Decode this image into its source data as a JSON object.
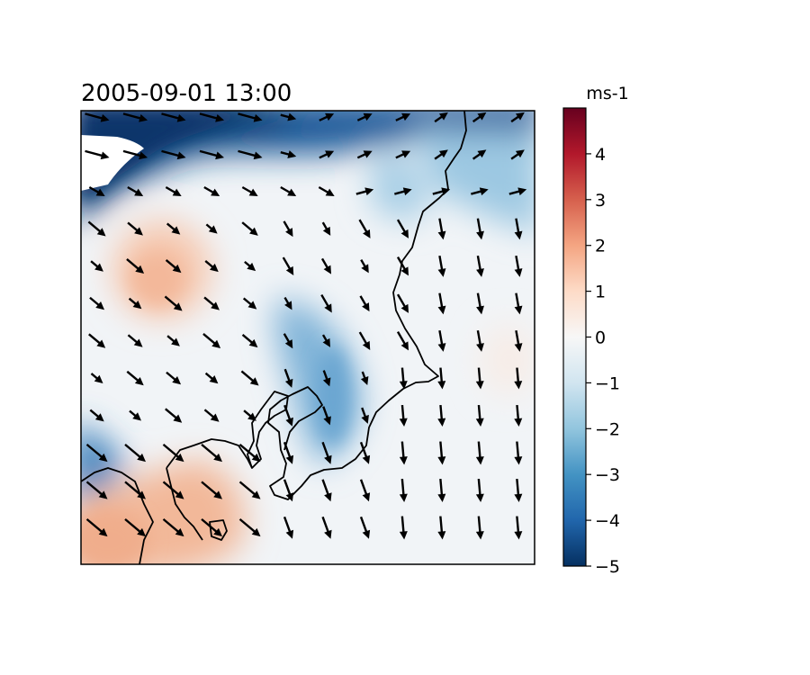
{
  "title": "2005-09-01 13:00",
  "colorbar": {
    "unit": "ms-1",
    "range": [
      -5,
      5
    ],
    "ticks": [
      4,
      3,
      2,
      1,
      0,
      -1,
      -2,
      -3,
      -4,
      -5
    ],
    "tick_labels": [
      "4",
      "3",
      "2",
      "1",
      "0",
      "−1",
      "−2",
      "−3",
      "−4",
      "−5"
    ],
    "colormap": [
      "#053061",
      "#2166ac",
      "#4393c3",
      "#92c5de",
      "#d1e5f0",
      "#f7f7f7",
      "#fddbc7",
      "#f4a582",
      "#d6604d",
      "#b2182b",
      "#67001f"
    ]
  },
  "map": {
    "background_color": "#f1f4f7",
    "coastline_color": "#000000",
    "vector_color": "#000000"
  },
  "chart_data": {
    "type": "map",
    "title": "2005-09-01 13:00",
    "field": "filled contour of wind component anomaly with wind vector overlay",
    "color_range": [
      -5,
      5
    ],
    "unit": "ms-1",
    "approx_regions": [
      {
        "area": "northern edge",
        "value": -4.5
      },
      {
        "area": "northwest corner",
        "value": -4.5
      },
      {
        "area": "west-central blob",
        "value": 1
      },
      {
        "area": "southwest corner",
        "value": 1.5
      },
      {
        "area": "central band",
        "value": -2.5
      },
      {
        "area": "west edge lower",
        "value": -3
      }
    ]
  }
}
